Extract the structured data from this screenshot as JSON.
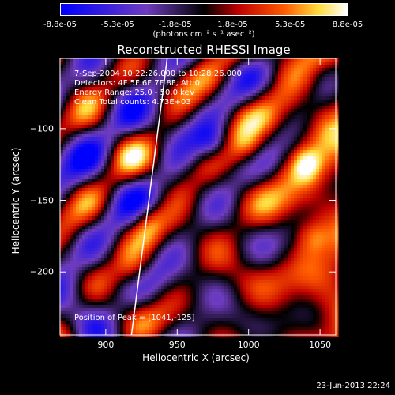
{
  "colorbar": {
    "tick_labels": [
      "-8.8e-05",
      "-5.3e-05",
      "-1.8e-05",
      "1.8e-05",
      "5.3e-05",
      "8.8e-05"
    ],
    "units": "(photons cm⁻² s⁻¹ asec⁻²)"
  },
  "chart_data": {
    "type": "heatmap",
    "title": "Reconstructed RHESSI Image",
    "xlabel": "Heliocentric X (arcsec)",
    "ylabel": "Heliocentric Y (arcsec)",
    "xlim": [
      868,
      1061
    ],
    "ylim": [
      -244,
      -51
    ],
    "xticks": [
      900,
      950,
      1000,
      1050
    ],
    "yticks": [
      -100,
      -150,
      -200
    ],
    "xtick_labels": [
      "900",
      "950",
      "1000",
      "1050"
    ],
    "ytick_labels": [
      "-100",
      "-150",
      "-200"
    ],
    "zlim": [
      -8.8e-05,
      8.8e-05
    ],
    "limb_line": [
      [
        918,
        -244
      ],
      [
        943,
        -51
      ]
    ],
    "peak": [
      1041,
      -125
    ],
    "notable_sources": [
      {
        "x": 930,
        "y": -165,
        "level": "bright"
      },
      {
        "x": 920,
        "y": -200,
        "level": "bright"
      },
      {
        "x": 1000,
        "y": -115,
        "level": "bright"
      },
      {
        "x": 1041,
        "y": -125,
        "level": "peak"
      },
      {
        "x": 975,
        "y": -110,
        "level": "min"
      },
      {
        "x": 1045,
        "y": -175,
        "level": "bright"
      }
    ]
  },
  "annotations": {
    "time_range": "7-Sep-2004 10:22:26.000 to 10:28:26.000",
    "detectors": "Detectors: 4F 5F 6F 7F 8F, Att 0",
    "energy": "Energy Range: 25.0 - 50.0 keV",
    "clean": "Clean     Total counts: 4.73E+03",
    "peak": "Position of Peak = [1041,-125]"
  },
  "timestamp": "23-Jun-2013 22:24"
}
